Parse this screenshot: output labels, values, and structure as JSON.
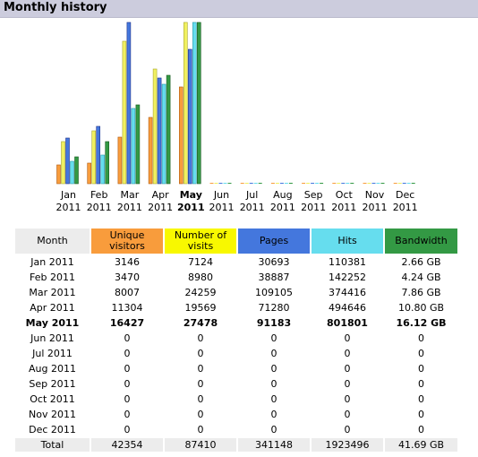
{
  "title": "Monthly history",
  "colors": {
    "unique_visitors": "#f89c3c",
    "visits": "#f0f060",
    "pages": "#4477dd",
    "hits": "#66ddee",
    "bandwidth": "#339944"
  },
  "table": {
    "headers": [
      "Month",
      "Unique visitors",
      "Number of visits",
      "Pages",
      "Hits",
      "Bandwidth"
    ],
    "rows": [
      {
        "month": "Jan 2011",
        "unique": "3146",
        "visits": "7124",
        "pages": "30693",
        "hits": "110381",
        "bandwidth": "2.66 GB"
      },
      {
        "month": "Feb 2011",
        "unique": "3470",
        "visits": "8980",
        "pages": "38887",
        "hits": "142252",
        "bandwidth": "4.24 GB"
      },
      {
        "month": "Mar 2011",
        "unique": "8007",
        "visits": "24259",
        "pages": "109105",
        "hits": "374416",
        "bandwidth": "7.86 GB"
      },
      {
        "month": "Apr 2011",
        "unique": "11304",
        "visits": "19569",
        "pages": "71280",
        "hits": "494646",
        "bandwidth": "10.80 GB"
      },
      {
        "month": "May 2011",
        "unique": "16427",
        "visits": "27478",
        "pages": "91183",
        "hits": "801801",
        "bandwidth": "16.12 GB"
      },
      {
        "month": "Jun 2011",
        "unique": "0",
        "visits": "0",
        "pages": "0",
        "hits": "0",
        "bandwidth": "0"
      },
      {
        "month": "Jul 2011",
        "unique": "0",
        "visits": "0",
        "pages": "0",
        "hits": "0",
        "bandwidth": "0"
      },
      {
        "month": "Aug 2011",
        "unique": "0",
        "visits": "0",
        "pages": "0",
        "hits": "0",
        "bandwidth": "0"
      },
      {
        "month": "Sep 2011",
        "unique": "0",
        "visits": "0",
        "pages": "0",
        "hits": "0",
        "bandwidth": "0"
      },
      {
        "month": "Oct 2011",
        "unique": "0",
        "visits": "0",
        "pages": "0",
        "hits": "0",
        "bandwidth": "0"
      },
      {
        "month": "Nov 2011",
        "unique": "0",
        "visits": "0",
        "pages": "0",
        "hits": "0",
        "bandwidth": "0"
      },
      {
        "month": "Dec 2011",
        "unique": "0",
        "visits": "0",
        "pages": "0",
        "hits": "0",
        "bandwidth": "0"
      }
    ],
    "total": {
      "month": "Total",
      "unique": "42354",
      "visits": "87410",
      "pages": "341148",
      "hits": "1923496",
      "bandwidth": "41.69 GB"
    }
  },
  "chart_data": {
    "type": "bar",
    "categories": [
      "Jan",
      "Feb",
      "Mar",
      "Apr",
      "May",
      "Jun",
      "Jul",
      "Aug",
      "Sep",
      "Oct",
      "Nov",
      "Dec"
    ],
    "year_label": "2011",
    "current_index": 4,
    "series": [
      {
        "key": "unique_visitors",
        "values": [
          3146,
          3470,
          8007,
          11304,
          16427,
          0,
          0,
          0,
          0,
          0,
          0,
          0
        ]
      },
      {
        "key": "visits",
        "values": [
          7124,
          8980,
          24259,
          19569,
          27478,
          0,
          0,
          0,
          0,
          0,
          0,
          0
        ]
      },
      {
        "key": "pages",
        "values": [
          30693,
          38887,
          109105,
          71280,
          91183,
          0,
          0,
          0,
          0,
          0,
          0,
          0
        ]
      },
      {
        "key": "hits",
        "values": [
          110381,
          142252,
          374416,
          494646,
          801801,
          0,
          0,
          0,
          0,
          0,
          0,
          0
        ]
      },
      {
        "key": "bandwidth_gb",
        "values": [
          2.66,
          4.24,
          7.86,
          10.8,
          16.12,
          0,
          0,
          0,
          0,
          0,
          0,
          0
        ]
      }
    ],
    "scale_groups": [
      [
        "unique_visitors",
        "visits"
      ],
      [
        "pages"
      ],
      [
        "hits"
      ],
      [
        "bandwidth_gb"
      ]
    ]
  }
}
